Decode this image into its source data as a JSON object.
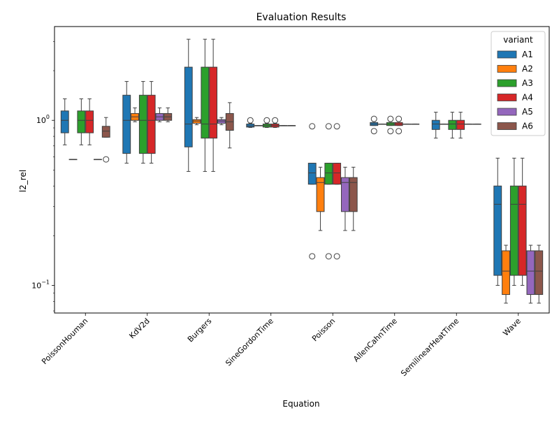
{
  "chart_data": {
    "type": "box",
    "title": "Evaluation Results",
    "xlabel": "Equation",
    "ylabel": "l2_rel",
    "yscale": "log",
    "ylim": [
      0.068,
      3.7
    ],
    "yticks": [
      {
        "value": 0.1,
        "base": "10",
        "exp": "−1"
      },
      {
        "value": 1,
        "base": "10",
        "exp": "0"
      }
    ],
    "grid": false,
    "legend": {
      "title": "variant",
      "position": "top-right"
    },
    "colors": {
      "A1": "#1f77b4",
      "A2": "#ff7f0e",
      "A3": "#2ca02c",
      "A4": "#d62728",
      "A5": "#9467bd",
      "A6": "#8c564b"
    },
    "categories": [
      "PoissonHouman",
      "KdV2d",
      "Burgers",
      "SineGordonTime",
      "Poisson",
      "AllenCahnTime",
      "SemilinearHeatTime",
      "Wave"
    ],
    "series": [
      {
        "name": "A1",
        "boxes": [
          {
            "category": "PoissonHouman",
            "whislo": 0.71,
            "q1": 0.84,
            "med": 1.0,
            "q3": 1.14,
            "whishi": 1.35,
            "fliers": []
          },
          {
            "category": "KdV2d",
            "whislo": 0.55,
            "q1": 0.63,
            "med": 1.0,
            "q3": 1.42,
            "whishi": 1.72,
            "fliers": []
          },
          {
            "category": "Burgers",
            "whislo": 0.49,
            "q1": 0.69,
            "med": 0.95,
            "q3": 2.1,
            "whishi": 3.1,
            "fliers": []
          },
          {
            "category": "SineGordonTime",
            "whislo": 0.905,
            "q1": 0.91,
            "med": 0.925,
            "q3": 0.95,
            "whishi": 0.96,
            "fliers": [
              1.0
            ]
          },
          {
            "category": "Poisson",
            "whislo": 0.41,
            "q1": 0.41,
            "med": 0.48,
            "q3": 0.55,
            "whishi": 0.55,
            "fliers": [
              0.15,
              0.92
            ]
          },
          {
            "category": "AllenCahnTime",
            "whislo": 0.93,
            "q1": 0.93,
            "med": 0.95,
            "q3": 0.97,
            "whishi": 0.97,
            "fliers": [
              0.86,
              1.02
            ]
          },
          {
            "category": "SemilinearHeatTime",
            "whislo": 0.78,
            "q1": 0.88,
            "med": 0.95,
            "q3": 1.0,
            "whishi": 1.12,
            "fliers": []
          },
          {
            "category": "Wave",
            "whislo": 0.1,
            "q1": 0.115,
            "med": 0.31,
            "q3": 0.4,
            "whishi": 0.59,
            "fliers": []
          }
        ]
      },
      {
        "name": "A2",
        "boxes": [
          {
            "category": "PoissonHouman",
            "whislo": 0.58,
            "q1": 0.58,
            "med": 0.58,
            "q3": 0.58,
            "whishi": 0.58,
            "fliers": []
          },
          {
            "category": "KdV2d",
            "whislo": 0.98,
            "q1": 1.0,
            "med": 1.05,
            "q3": 1.1,
            "whishi": 1.19,
            "fliers": []
          },
          {
            "category": "Burgers",
            "whislo": 0.94,
            "q1": 0.96,
            "med": 0.99,
            "q3": 1.01,
            "whishi": 1.04,
            "fliers": []
          },
          {
            "category": "SineGordonTime",
            "whislo": 0.93,
            "q1": 0.93,
            "med": 0.93,
            "q3": 0.93,
            "whishi": 0.93,
            "fliers": []
          },
          {
            "category": "Poisson",
            "whislo": 0.215,
            "q1": 0.28,
            "med": 0.42,
            "q3": 0.45,
            "whishi": 0.52,
            "fliers": []
          },
          {
            "category": "AllenCahnTime",
            "whislo": 0.95,
            "q1": 0.95,
            "med": 0.95,
            "q3": 0.95,
            "whishi": 0.95,
            "fliers": []
          },
          {
            "category": "SemilinearHeatTime",
            "whislo": 0.95,
            "q1": 0.95,
            "med": 0.95,
            "q3": 0.95,
            "whishi": 0.95,
            "fliers": []
          },
          {
            "category": "Wave",
            "whislo": 0.078,
            "q1": 0.088,
            "med": 0.122,
            "q3": 0.162,
            "whishi": 0.175,
            "fliers": []
          }
        ]
      },
      {
        "name": "A3",
        "boxes": [
          {
            "category": "PoissonHouman",
            "whislo": 0.71,
            "q1": 0.84,
            "med": 1.0,
            "q3": 1.14,
            "whishi": 1.35,
            "fliers": []
          },
          {
            "category": "KdV2d",
            "whislo": 0.55,
            "q1": 0.63,
            "med": 1.0,
            "q3": 1.42,
            "whishi": 1.72,
            "fliers": []
          },
          {
            "category": "Burgers",
            "whislo": 0.49,
            "q1": 0.78,
            "med": 0.95,
            "q3": 2.1,
            "whishi": 3.1,
            "fliers": []
          },
          {
            "category": "SineGordonTime",
            "whislo": 0.905,
            "q1": 0.91,
            "med": 0.93,
            "q3": 0.95,
            "whishi": 0.96,
            "fliers": [
              1.0
            ]
          },
          {
            "category": "Poisson",
            "whislo": 0.41,
            "q1": 0.41,
            "med": 0.48,
            "q3": 0.55,
            "whishi": 0.55,
            "fliers": [
              0.15,
              0.92
            ]
          },
          {
            "category": "AllenCahnTime",
            "whislo": 0.93,
            "q1": 0.93,
            "med": 0.95,
            "q3": 0.97,
            "whishi": 0.97,
            "fliers": [
              0.86,
              1.02
            ]
          },
          {
            "category": "SemilinearHeatTime",
            "whislo": 0.78,
            "q1": 0.88,
            "med": 0.95,
            "q3": 1.0,
            "whishi": 1.12,
            "fliers": []
          },
          {
            "category": "Wave",
            "whislo": 0.1,
            "q1": 0.115,
            "med": 0.31,
            "q3": 0.4,
            "whishi": 0.59,
            "fliers": []
          }
        ]
      },
      {
        "name": "A4",
        "boxes": [
          {
            "category": "PoissonHouman",
            "whislo": 0.71,
            "q1": 0.84,
            "med": 1.0,
            "q3": 1.14,
            "whishi": 1.35,
            "fliers": []
          },
          {
            "category": "KdV2d",
            "whislo": 0.55,
            "q1": 0.63,
            "med": 1.0,
            "q3": 1.42,
            "whishi": 1.72,
            "fliers": []
          },
          {
            "category": "Burgers",
            "whislo": 0.49,
            "q1": 0.78,
            "med": 0.95,
            "q3": 2.1,
            "whishi": 3.1,
            "fliers": []
          },
          {
            "category": "SineGordonTime",
            "whislo": 0.905,
            "q1": 0.91,
            "med": 0.93,
            "q3": 0.95,
            "whishi": 0.96,
            "fliers": [
              1.0
            ]
          },
          {
            "category": "Poisson",
            "whislo": 0.41,
            "q1": 0.41,
            "med": 0.48,
            "q3": 0.55,
            "whishi": 0.55,
            "fliers": [
              0.15,
              0.92
            ]
          },
          {
            "category": "AllenCahnTime",
            "whislo": 0.93,
            "q1": 0.93,
            "med": 0.95,
            "q3": 0.97,
            "whishi": 0.97,
            "fliers": [
              0.86,
              1.02
            ]
          },
          {
            "category": "SemilinearHeatTime",
            "whislo": 0.78,
            "q1": 0.88,
            "med": 0.95,
            "q3": 1.0,
            "whishi": 1.12,
            "fliers": []
          },
          {
            "category": "Wave",
            "whislo": 0.1,
            "q1": 0.115,
            "med": 0.31,
            "q3": 0.4,
            "whishi": 0.59,
            "fliers": []
          }
        ]
      },
      {
        "name": "A5",
        "boxes": [
          {
            "category": "PoissonHouman",
            "whislo": 0.58,
            "q1": 0.58,
            "med": 0.58,
            "q3": 0.58,
            "whishi": 0.58,
            "fliers": []
          },
          {
            "category": "KdV2d",
            "whislo": 0.98,
            "q1": 1.0,
            "med": 1.05,
            "q3": 1.1,
            "whishi": 1.19,
            "fliers": []
          },
          {
            "category": "Burgers",
            "whislo": 0.94,
            "q1": 0.96,
            "med": 0.99,
            "q3": 1.01,
            "whishi": 1.04,
            "fliers": []
          },
          {
            "category": "SineGordonTime",
            "whislo": 0.93,
            "q1": 0.93,
            "med": 0.93,
            "q3": 0.93,
            "whishi": 0.93,
            "fliers": []
          },
          {
            "category": "Poisson",
            "whislo": 0.215,
            "q1": 0.28,
            "med": 0.42,
            "q3": 0.45,
            "whishi": 0.52,
            "fliers": []
          },
          {
            "category": "AllenCahnTime",
            "whislo": 0.95,
            "q1": 0.95,
            "med": 0.95,
            "q3": 0.95,
            "whishi": 0.95,
            "fliers": []
          },
          {
            "category": "SemilinearHeatTime",
            "whislo": 0.95,
            "q1": 0.95,
            "med": 0.95,
            "q3": 0.95,
            "whishi": 0.95,
            "fliers": []
          },
          {
            "category": "Wave",
            "whislo": 0.078,
            "q1": 0.088,
            "med": 0.122,
            "q3": 0.162,
            "whishi": 0.175,
            "fliers": []
          }
        ]
      },
      {
        "name": "A6",
        "boxes": [
          {
            "category": "PoissonHouman",
            "whislo": 0.79,
            "q1": 0.79,
            "med": 0.86,
            "q3": 0.92,
            "whishi": 1.04,
            "fliers": [
              0.58
            ]
          },
          {
            "category": "KdV2d",
            "whislo": 0.98,
            "q1": 1.0,
            "med": 1.05,
            "q3": 1.1,
            "whishi": 1.19,
            "fliers": []
          },
          {
            "category": "Burgers",
            "whislo": 0.68,
            "q1": 0.87,
            "med": 0.98,
            "q3": 1.1,
            "whishi": 1.28,
            "fliers": []
          },
          {
            "category": "SineGordonTime",
            "whislo": 0.93,
            "q1": 0.93,
            "med": 0.93,
            "q3": 0.93,
            "whishi": 0.93,
            "fliers": []
          },
          {
            "category": "Poisson",
            "whislo": 0.215,
            "q1": 0.28,
            "med": 0.42,
            "q3": 0.45,
            "whishi": 0.52,
            "fliers": []
          },
          {
            "category": "AllenCahnTime",
            "whislo": 0.95,
            "q1": 0.95,
            "med": 0.95,
            "q3": 0.95,
            "whishi": 0.95,
            "fliers": []
          },
          {
            "category": "SemilinearHeatTime",
            "whislo": 0.95,
            "q1": 0.95,
            "med": 0.95,
            "q3": 0.95,
            "whishi": 0.95,
            "fliers": []
          },
          {
            "category": "Wave",
            "whislo": 0.078,
            "q1": 0.088,
            "med": 0.122,
            "q3": 0.162,
            "whishi": 0.175,
            "fliers": []
          }
        ]
      }
    ]
  }
}
